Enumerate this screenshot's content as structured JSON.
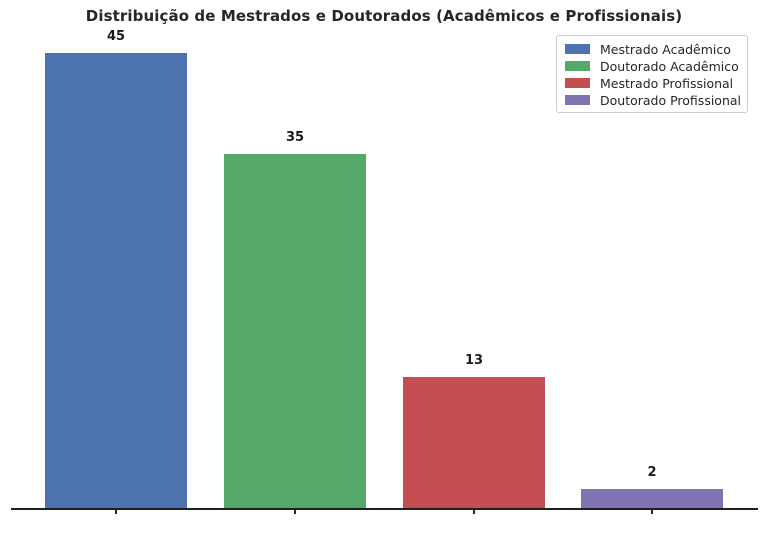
{
  "chart_data": {
    "type": "bar",
    "title": "Distribuição de Mestrados e Doutorados (Acadêmicos e Profissionais)",
    "categories": [
      "Mestrado Acadêmico",
      "Doutorado Acadêmico",
      "Mestrado Profissional",
      "Doutorado Profissional"
    ],
    "values": [
      45,
      35,
      13,
      2
    ],
    "value_labels": [
      "45",
      "35",
      "13",
      "2"
    ],
    "bar_colors": [
      "#4C72B0",
      "#55A868",
      "#C44E52",
      "#8172B2"
    ],
    "xlabel": "",
    "ylabel": "",
    "ylim": [
      0,
      45
    ],
    "grid": false,
    "x_tick_labels": [],
    "axis_color": "#262626",
    "text_color": "#262626",
    "background_color": "#ffffff",
    "legend": {
      "position": "upper right",
      "entries": [
        {
          "label": "Mestrado Acadêmico",
          "color": "#4C72B0"
        },
        {
          "label": "Doutorado Acadêmico",
          "color": "#55A868"
        },
        {
          "label": "Mestrado Profissional",
          "color": "#C44E52"
        },
        {
          "label": "Doutorado Profissional",
          "color": "#8172B2"
        }
      ]
    }
  }
}
